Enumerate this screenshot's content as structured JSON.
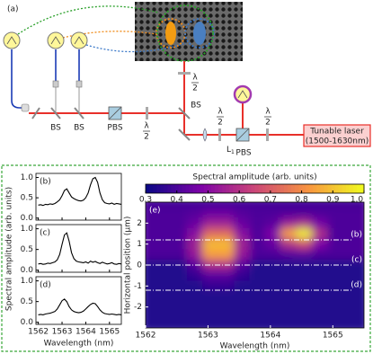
{
  "diagram": {
    "panel": "(a)",
    "bs": [
      "BS",
      "BS",
      "BS"
    ],
    "pbs": [
      "PBS",
      "PBS"
    ],
    "half_wave": [
      {
        "top": "λ",
        "bottom": "2"
      },
      {
        "top": "λ",
        "bottom": "2"
      },
      {
        "top": "λ",
        "bottom": "2"
      },
      {
        "top": "λ",
        "bottom": "2"
      }
    ],
    "lens": {
      "text": "L",
      "sub": "1"
    },
    "laser": [
      "Tunable laser",
      "(1500-1630nm)"
    ]
  },
  "chart_data": [
    {
      "type": "line",
      "panel": "(b)",
      "ylabel": "Spectral amplitude (arb. units)",
      "color": "#000000",
      "x": [
        1562.0,
        1562.1,
        1562.2,
        1562.3,
        1562.4,
        1562.5,
        1562.6,
        1562.7,
        1562.8,
        1562.9,
        1563.0,
        1563.1,
        1563.2,
        1563.3,
        1563.4,
        1563.5,
        1563.6,
        1563.7,
        1563.8,
        1563.9,
        1564.0,
        1564.1,
        1564.2,
        1564.3,
        1564.4,
        1564.5,
        1564.6,
        1564.7,
        1564.8,
        1564.9,
        1565.0,
        1565.1,
        1565.2,
        1565.3,
        1565.4,
        1565.5
      ],
      "values": [
        0.32,
        0.33,
        0.31,
        0.34,
        0.33,
        0.35,
        0.34,
        0.36,
        0.4,
        0.45,
        0.55,
        0.68,
        0.72,
        0.62,
        0.52,
        0.48,
        0.45,
        0.43,
        0.42,
        0.44,
        0.5,
        0.62,
        0.82,
        0.97,
        1.0,
        0.88,
        0.62,
        0.45,
        0.38,
        0.36,
        0.35,
        0.37,
        0.34,
        0.36,
        0.35,
        0.34
      ],
      "xlim": [
        1561.9,
        1565.5
      ],
      "ylim": [
        -0.05,
        1.1
      ],
      "xticks": [
        1562,
        1563,
        1564,
        1565
      ],
      "yticks": [
        {
          "value": 0,
          "label": "0.0"
        },
        {
          "value": 0.5,
          "label": "0.5"
        },
        {
          "value": 1,
          "label": "1.0"
        }
      ]
    },
    {
      "type": "line",
      "panel": "(c)",
      "color": "#000000",
      "x": [
        1562.0,
        1562.1,
        1562.2,
        1562.3,
        1562.4,
        1562.5,
        1562.6,
        1562.7,
        1562.8,
        1562.9,
        1563.0,
        1563.1,
        1563.2,
        1563.3,
        1563.4,
        1563.5,
        1563.6,
        1563.7,
        1563.8,
        1563.9,
        1564.0,
        1564.1,
        1564.2,
        1564.3,
        1564.4,
        1564.5,
        1564.6,
        1564.7,
        1564.8,
        1564.9,
        1565.0,
        1565.1,
        1565.2,
        1565.3,
        1565.4,
        1565.5
      ],
      "values": [
        0.15,
        0.16,
        0.14,
        0.15,
        0.17,
        0.16,
        0.18,
        0.2,
        0.25,
        0.38,
        0.62,
        0.85,
        0.9,
        0.7,
        0.42,
        0.28,
        0.22,
        0.2,
        0.19,
        0.18,
        0.2,
        0.17,
        0.22,
        0.19,
        0.21,
        0.18,
        0.16,
        0.19,
        0.17,
        0.15,
        0.16,
        0.18,
        0.15,
        0.14,
        0.16,
        0.15
      ],
      "xlim": [
        1561.9,
        1565.5
      ],
      "ylim": [
        -0.05,
        1.1
      ],
      "xticks": [
        1562,
        1563,
        1564,
        1565
      ],
      "yticks": [
        {
          "value": 0,
          "label": "0.0"
        },
        {
          "value": 0.5,
          "label": "0.5"
        },
        {
          "value": 1,
          "label": "1.0"
        }
      ]
    },
    {
      "type": "line",
      "panel": "(d)",
      "xlabel": "Wavelength (nm)",
      "color": "#000000",
      "x": [
        1562.0,
        1562.1,
        1562.2,
        1562.3,
        1562.4,
        1562.5,
        1562.6,
        1562.7,
        1562.8,
        1562.9,
        1563.0,
        1563.1,
        1563.2,
        1563.3,
        1563.4,
        1563.5,
        1563.6,
        1563.7,
        1563.8,
        1563.9,
        1564.0,
        1564.1,
        1564.2,
        1564.3,
        1564.4,
        1564.5,
        1564.6,
        1564.7,
        1564.8,
        1564.9,
        1565.0,
        1565.1,
        1565.2,
        1565.3,
        1565.4,
        1565.5
      ],
      "values": [
        0.18,
        0.19,
        0.18,
        0.2,
        0.21,
        0.22,
        0.24,
        0.26,
        0.32,
        0.42,
        0.52,
        0.56,
        0.5,
        0.38,
        0.3,
        0.26,
        0.24,
        0.23,
        0.24,
        0.27,
        0.32,
        0.38,
        0.43,
        0.46,
        0.45,
        0.38,
        0.3,
        0.24,
        0.21,
        0.2,
        0.19,
        0.2,
        0.19,
        0.18,
        0.19,
        0.18
      ],
      "xlim": [
        1561.9,
        1565.5
      ],
      "ylim": [
        -0.05,
        1.1
      ],
      "xticks": [
        1562,
        1563,
        1564,
        1565
      ],
      "yticks": [
        {
          "value": 0,
          "label": "0.0"
        },
        {
          "value": 0.5,
          "label": "0.5"
        },
        {
          "value": 1,
          "label": "1.0"
        }
      ]
    },
    {
      "type": "heatmap",
      "panel": "(e)",
      "xlabel": "Wavelength (nm)",
      "ylabel": "Horizontal position (μm)",
      "colorbar_label": "Spectral amplitude (arb. units)",
      "colormap": "plasma",
      "clim": [
        0.3,
        1.0
      ],
      "cticks": [
        0.3,
        0.4,
        0.5,
        0.6,
        0.7,
        0.8,
        0.9,
        {
          "value": 1,
          "label": "1.0"
        }
      ],
      "xlim": [
        1562,
        1565.5
      ],
      "ylim": [
        -3,
        3
      ],
      "xticks": [
        1562,
        1563,
        1564,
        1565
      ],
      "yticks": [
        2,
        1,
        0,
        -1,
        -2
      ],
      "x": [
        1562.125,
        1562.375,
        1562.625,
        1562.875,
        1563.125,
        1563.375,
        1563.625,
        1563.875,
        1564.125,
        1564.375,
        1564.625,
        1564.875,
        1565.125,
        1565.375
      ],
      "y": [
        2.75,
        2.25,
        1.75,
        1.25,
        0.75,
        0.25,
        -0.25,
        -0.75,
        -1.25,
        -1.75,
        -2.25,
        -2.75
      ],
      "z": [
        [
          0.38,
          0.38,
          0.38,
          0.38,
          0.38,
          0.38,
          0.38,
          0.38,
          0.38,
          0.38,
          0.38,
          0.38,
          0.38,
          0.38
        ],
        [
          0.4,
          0.4,
          0.4,
          0.41,
          0.44,
          0.44,
          0.41,
          0.4,
          0.4,
          0.4,
          0.4,
          0.4,
          0.4,
          0.4
        ],
        [
          0.4,
          0.4,
          0.4,
          0.44,
          0.54,
          0.54,
          0.44,
          0.4,
          0.42,
          0.53,
          0.57,
          0.46,
          0.4,
          0.4
        ],
        [
          0.4,
          0.4,
          0.4,
          0.5,
          0.73,
          0.73,
          0.5,
          0.4,
          0.48,
          0.84,
          0.98,
          0.59,
          0.4,
          0.4
        ],
        [
          0.4,
          0.4,
          0.4,
          0.55,
          0.89,
          0.89,
          0.55,
          0.4,
          0.44,
          0.59,
          0.66,
          0.48,
          0.4,
          0.4
        ],
        [
          0.4,
          0.4,
          0.4,
          0.53,
          0.84,
          0.84,
          0.53,
          0.4,
          0.4,
          0.41,
          0.42,
          0.4,
          0.4,
          0.4
        ],
        [
          0.33,
          0.33,
          0.33,
          0.41,
          0.58,
          0.58,
          0.41,
          0.33,
          0.33,
          0.33,
          0.33,
          0.33,
          0.33,
          0.33
        ],
        [
          0.33,
          0.33,
          0.33,
          0.36,
          0.42,
          0.42,
          0.36,
          0.33,
          0.33,
          0.33,
          0.33,
          0.33,
          0.33,
          0.33
        ],
        [
          0.33,
          0.33,
          0.33,
          0.33,
          0.36,
          0.36,
          0.33,
          0.33,
          0.33,
          0.33,
          0.33,
          0.33,
          0.33,
          0.33
        ],
        [
          0.33,
          0.33,
          0.33,
          0.33,
          0.33,
          0.33,
          0.33,
          0.33,
          0.33,
          0.33,
          0.33,
          0.33,
          0.33,
          0.33
        ],
        [
          0.33,
          0.33,
          0.33,
          0.33,
          0.33,
          0.33,
          0.33,
          0.33,
          0.33,
          0.33,
          0.33,
          0.33,
          0.33,
          0.33
        ],
        [
          0.33,
          0.33,
          0.33,
          0.33,
          0.33,
          0.33,
          0.33,
          0.33,
          0.33,
          0.33,
          0.33,
          0.33,
          0.33,
          0.33
        ]
      ],
      "cuts": [
        {
          "label": "(b)",
          "value": 1.2
        },
        {
          "label": "(c)",
          "value": 0
        },
        {
          "label": "(d)",
          "value": -1.2
        }
      ]
    }
  ]
}
